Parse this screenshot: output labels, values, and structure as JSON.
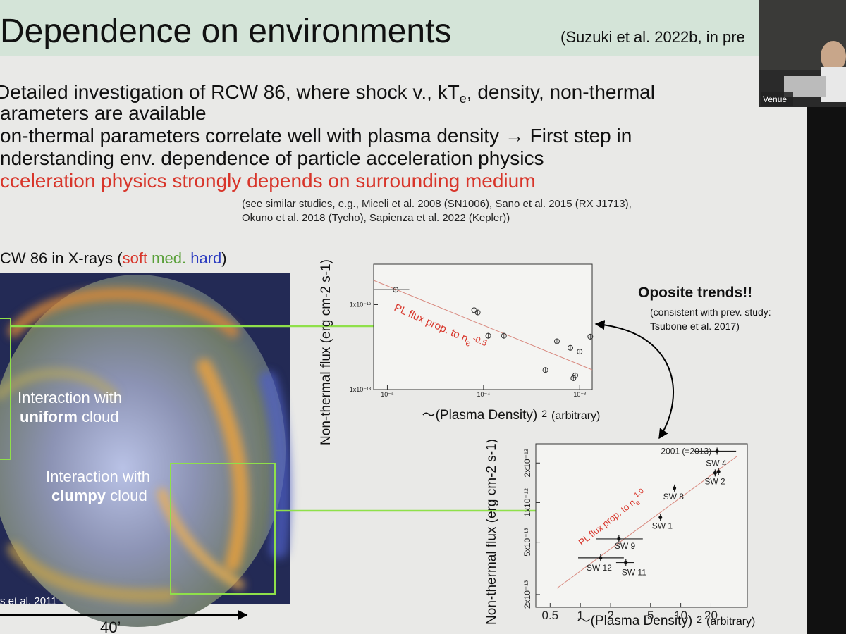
{
  "slide": {
    "title": "Dependence on environments",
    "citation": "(Suzuki et al. 2022b, in pre",
    "bullets": [
      {
        "text": "Detailed investigation of RCW 86, where shock v., kT",
        "sub": "e",
        "rest": ", density, non-thermal"
      },
      {
        "text": "arameters are available"
      },
      {
        "text": "on-thermal parameters correlate well with plasma density → First step in"
      },
      {
        "text": "nderstanding env. dependence of particle acceleration physics"
      },
      {
        "text": "cceleration physics strongly depends on surrounding medium"
      }
    ],
    "note": [
      "(see similar studies, e.g., Miceli et al. 2008 (SN1006), Sano et al. 2015 (RX J1713),",
      "Okuno et al. 2018 (Tycho), Sapienza et al. 2022 (Kepler))"
    ],
    "caption": [
      "CW 86 in X-rays (",
      "soft",
      " med.",
      " hard",
      ")"
    ],
    "image_labels": [
      {
        "line1": "Interaction with",
        "bold": "uniform",
        "rest": " cloud"
      },
      {
        "line1": "Interaction with",
        "bold": "clumpy",
        "rest": " cloud"
      }
    ],
    "credit": "s et al. 2011",
    "scale": "40’"
  },
  "plots": [
    {
      "ylabel": "Non-thermal flux (erg cm-2 s-1)",
      "xlabel": [
        "〜(Plasma Density)",
        "2",
        "(arbitrary)"
      ],
      "fit_label": [
        "PL flux prop. to n",
        "e",
        "-0.5"
      ],
      "xscale": "log",
      "yscale": "log",
      "xlim": [
        7.2e-06,
        0.00135
      ],
      "ylim": [
        1e-13,
        3e-12
      ],
      "xticks": [
        {
          "value": 1e-05,
          "label": "10⁻⁵"
        },
        {
          "value": 0.0001,
          "label": "10⁻⁴"
        },
        {
          "value": 0.001,
          "label": "10⁻³"
        }
      ],
      "yticks": [
        {
          "value": 1e-13,
          "label": "1x10⁻¹³"
        },
        {
          "value": 1e-12,
          "label": "1x10⁻¹²"
        }
      ],
      "points": [
        {
          "x": 1.22e-05,
          "y": 1.5e-12,
          "xerr": [
            7.2e-06,
            1.69e-05
          ]
        },
        {
          "x": 8e-05,
          "y": 8.6e-13
        },
        {
          "x": 8.7e-05,
          "y": 8.1e-13
        },
        {
          "x": 0.000112,
          "y": 4.3e-13
        },
        {
          "x": 0.000163,
          "y": 4.3e-13
        },
        {
          "x": 0.00058,
          "y": 3.7e-13
        },
        {
          "x": 0.0008,
          "y": 3.1e-13
        },
        {
          "x": 0.001,
          "y": 2.8e-13
        },
        {
          "x": 0.00129,
          "y": 4.2e-13
        },
        {
          "x": 0.00044,
          "y": 1.7e-13
        },
        {
          "x": 0.00086,
          "y": 1.36e-13
        },
        {
          "x": 0.0009,
          "y": 1.47e-13
        }
      ]
    },
    {
      "ylabel": "Non-thermal flux (erg cm-2 s-1)",
      "xlabel": [
        "〜(Plasma Density)",
        "2",
        "(arbitrary)"
      ],
      "fit_label": [
        "PL flux prop. to n",
        "e",
        "1.0"
      ],
      "xscale": "log",
      "yscale": "log",
      "xlim": [
        0.36,
        46
      ],
      "ylim": [
        1.6e-13,
        2.8e-12
      ],
      "xticks": [
        0.5,
        1,
        2,
        5,
        10,
        20
      ],
      "yticks": [
        {
          "value": 2e-13,
          "label": "2x10⁻¹³"
        },
        {
          "value": 5e-13,
          "label": "5x10⁻¹³"
        },
        {
          "value": 1e-12,
          "label": "1x10⁻¹²"
        },
        {
          "value": 2e-12,
          "label": "2x10⁻¹²"
        }
      ],
      "points": [
        {
          "x": 23,
          "y": 2.46e-12,
          "xerr": [
            13.6,
            35.6
          ],
          "label": "2001 (=2013)"
        },
        {
          "x": 23.8,
          "y": 1.72e-12,
          "label": "SW 4"
        },
        {
          "x": 22,
          "y": 1.68e-12,
          "label": "SW 2"
        },
        {
          "x": 8.65,
          "y": 1.29e-12,
          "label": "SW 8"
        },
        {
          "x": 6.27,
          "y": 7.7e-13,
          "label": "SW 1"
        },
        {
          "x": 2.42,
          "y": 5.3e-13,
          "xerr": [
            1.43,
            4.19
          ],
          "label": "SW 9"
        },
        {
          "x": 1.59,
          "y": 3.8e-13,
          "xerr": [
            0.95,
            2.71
          ],
          "label": "SW 12"
        },
        {
          "x": 2.84,
          "y": 3.5e-13,
          "xerr": [
            2.27,
            3.45
          ],
          "label": "SW 11"
        }
      ]
    }
  ],
  "annotation": {
    "title": "Oposite trends!!",
    "text": [
      "(consistent with prev. study:",
      "Tsubone et al. 2017)"
    ]
  },
  "video": {
    "label": "Venue"
  }
}
